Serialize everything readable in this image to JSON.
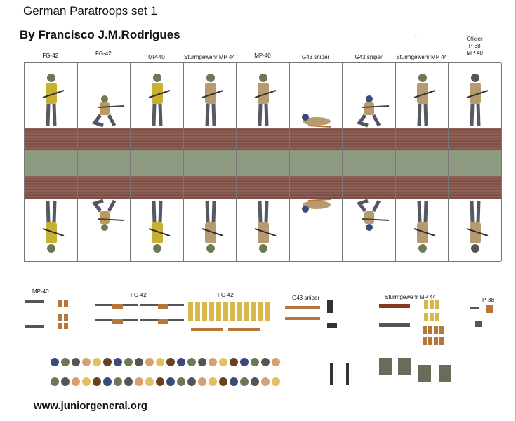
{
  "header": {
    "title": "German  Paratroops set 1",
    "author": "By Francisco J.M.Rodrigues",
    "mark": "-"
  },
  "columns": [
    {
      "label": "FG-42",
      "uniform": "#c8b030",
      "helmet": "#6b7a55",
      "pose": "standing"
    },
    {
      "label": "FG-42",
      "uniform": "#b89a60",
      "helmet": "#6b7a55",
      "pose": "kneeling"
    },
    {
      "label": "MP-40",
      "uniform": "#c8b030",
      "helmet": "#6b7a55",
      "pose": "standing"
    },
    {
      "label": "Sturmgewehr MP 44",
      "uniform": "#b89a70",
      "helmet": "#6b7a55",
      "pose": "standing"
    },
    {
      "label": "MP-40",
      "uniform": "#b89a70",
      "helmet": "#6b7a55",
      "pose": "standing"
    },
    {
      "label": "G43 sniper",
      "uniform": "#b89a70",
      "helmet": "#3a4a7a",
      "pose": "prone"
    },
    {
      "label": "G43 sniper",
      "uniform": "#b89a70",
      "helmet": "#3a4a7a",
      "pose": "kneeling"
    },
    {
      "label": "Sturmgewehr MP 44",
      "uniform": "#b89a70",
      "helmet": "#6b7a55",
      "pose": "standing"
    },
    {
      "label": "Oficier\nP-38\nMP-40",
      "uniform": "#b89a70",
      "helmet": "#555555",
      "pose": "standing"
    }
  ],
  "accessories": {
    "mp40": "MP-40",
    "fg42_a": "FG-42",
    "fg42_b": "FG-42",
    "g43": "G43 sniper",
    "mp44": "Sturmgewehr MP 44",
    "p38": "P-38"
  },
  "footer": {
    "url": "www.juniorgeneral.org"
  },
  "colors": {
    "ground": "#8a5a50",
    "grass": "#8f9a82",
    "wood": "#b5763a",
    "metal": "#555555",
    "ammo": "#d8b84a"
  }
}
